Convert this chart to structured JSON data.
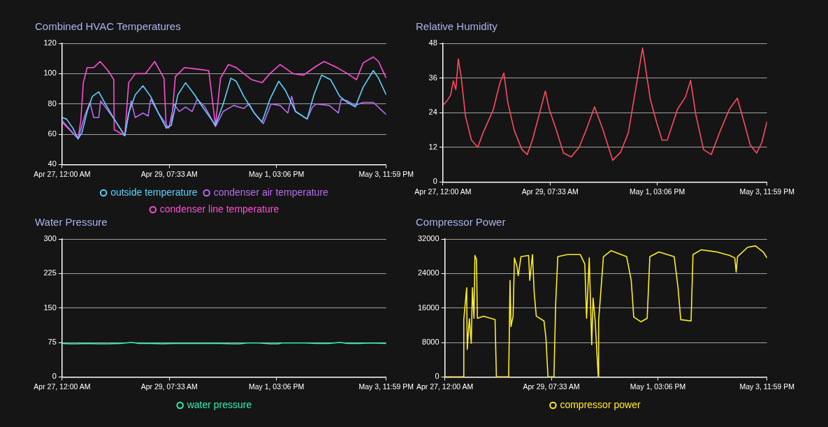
{
  "chart_data": [
    {
      "type": "line",
      "title": "Combined HVAC Temperatures",
      "xlim": [
        "--04-27T00:00",
        "--05-03T23:59"
      ],
      "xticks": [
        {
          "value": "--04-27T00:00",
          "label": "Apr 27, 12:00 AM"
        },
        {
          "value": "--04-29T07:33",
          "label": "Apr 29, 07:33 AM"
        },
        {
          "value": "--05-01T15:06",
          "label": "May 1, 03:06 PM"
        },
        {
          "value": "--05-03T23:59",
          "label": "May 3, 11:59 PM"
        }
      ],
      "ylim": [
        40,
        120
      ],
      "yticks": [
        40,
        60,
        80,
        100,
        120
      ],
      "grid": "y",
      "legend": "bottom",
      "marker": "none",
      "series": [
        {
          "name": "outside temperature",
          "color": "#5cd2ff",
          "x": [
            "--04-27T00:00",
            "--04-27T02:18",
            "--04-27T05:36",
            "--04-27T08:18",
            "--04-27T10:18",
            "--04-27T13:00",
            "--04-27T15:42",
            "--04-27T19:00",
            "--04-27T22:24",
            "--04-28T03:00",
            "--04-28T08:30",
            "--04-28T10:30",
            "--04-28T13:54",
            "--04-28T17:54",
            "--04-28T21:54",
            "--04-29T01:54",
            "--04-29T06:00",
            "--04-29T08:36",
            "--04-29T12:00",
            "--04-29T16:00",
            "--04-29T20:42",
            "--04-30T00:48",
            "--04-30T07:30",
            "--04-30T11:30",
            "--04-30T15:30",
            "--04-30T18:12",
            "--04-30T22:12",
            "--05-01T03:36",
            "--05-01T07:36",
            "--05-01T11:42",
            "--05-01T16:18",
            "--05-01T19:42",
            "--05-02T01:00",
            "--05-02T07:00",
            "--05-02T10:30",
            "--05-02T14:30",
            "--05-02T19:12",
            "--05-02T23:54",
            "--05-03T03:54",
            "--05-03T08:00",
            "--05-03T12:00",
            "--05-03T17:18",
            "--05-03T20:00",
            "--05-03T23:59"
          ],
          "values": [
            71,
            70,
            64,
            57,
            61,
            75,
            85,
            88,
            80,
            70,
            59,
            74,
            86,
            92,
            85,
            74,
            64,
            66,
            86,
            94,
            86,
            78,
            66,
            80,
            97,
            95,
            85,
            74,
            68,
            83,
            95,
            89,
            75,
            70,
            86,
            99,
            96,
            85,
            81,
            78,
            91,
            102,
            97,
            86
          ]
        },
        {
          "name": "condenser air temperature",
          "color": "#b86cf2",
          "x": [
            "--04-27T00:00",
            "--04-27T08:18",
            "--04-27T11:42",
            "--04-27T14:24",
            "--04-27T16:24",
            "--04-27T19:00",
            "--04-27T20:00",
            "--04-27T23:00",
            "--04-28T03:00",
            "--04-28T08:30",
            "--04-28T11:48",
            "--04-28T13:54",
            "--04-28T17:54",
            "--04-28T20:36",
            "--04-28T21:54",
            "--04-29T01:54",
            "--04-29T07:18",
            "--04-29T10:00",
            "--04-29T12:42",
            "--04-29T16:00",
            "--04-29T19:24",
            "--04-29T22:00",
            "--04-30T02:06",
            "--04-30T07:30",
            "--04-30T11:30",
            "--04-30T16:54",
            "--04-30T22:12",
            "--05-01T00:54",
            "--05-01T03:36",
            "--05-01T08:18",
            "--05-01T12:18",
            "--05-01T17:00",
            "--05-01T21:00",
            "--05-01T23:00",
            "--05-02T01:00",
            "--05-02T07:00",
            "--05-02T09:48",
            "--05-02T11:48",
            "--05-02T18:30",
            "--05-02T23:12",
            "--05-03T00:36",
            "--05-03T03:54",
            "--05-03T08:00",
            "--05-03T12:00",
            "--05-03T17:18",
            "--05-03T23:59"
          ],
          "values": [
            69,
            57,
            72,
            81,
            71,
            71,
            82,
            77,
            70,
            59,
            82,
            71,
            74,
            72,
            83,
            74,
            64,
            80,
            75,
            78,
            75,
            83,
            78,
            65,
            75,
            79,
            77,
            80,
            74,
            67,
            80,
            79,
            74,
            85,
            75,
            70,
            78,
            80,
            79,
            74,
            83,
            82,
            79,
            81,
            81,
            73
          ]
        },
        {
          "name": "condenser line temperature",
          "color": "#ff4fd6",
          "x": [
            "--04-27T00:00",
            "--04-27T08:18",
            "--04-27T09:42",
            "--04-27T11:00",
            "--04-27T13:00",
            "--04-27T16:24",
            "--04-27T19:42",
            "--04-27T23:48",
            "--04-28T02:48",
            "--04-28T03:00",
            "--04-28T08:30",
            "--04-28T10:30",
            "--04-28T13:54",
            "--04-28T19:12",
            "--04-29T00:00",
            "--04-29T04:48",
            "--04-29T06:00",
            "--04-29T08:36",
            "--04-29T10:42",
            "--04-29T15:24",
            "--04-29T22:00",
            "--04-30T04:00",
            "--04-30T07:30",
            "--04-30T10:06",
            "--04-30T14:12",
            "--04-30T18:12",
            "--05-01T02:18",
            "--05-01T07:36",
            "--05-01T11:42",
            "--05-01T17:00",
            "--05-01T23:42",
            "--05-02T05:06",
            "--05-02T11:48",
            "--05-02T15:48",
            "--05-02T22:30",
            "--05-03T03:54",
            "--05-03T08:36",
            "--05-03T12:00",
            "--05-03T17:18",
            "--05-03T20:00",
            "--05-03T23:59"
          ],
          "values": [
            68,
            57,
            69,
            94,
            104,
            104,
            108,
            102,
            96,
            63,
            59,
            94,
            100,
            100,
            108,
            97,
            64,
            66,
            98,
            104,
            103,
            102,
            66,
            97,
            106,
            104,
            96,
            94,
            100,
            106,
            100,
            99,
            105,
            108,
            104,
            100,
            96,
            107,
            111,
            108,
            97
          ]
        }
      ]
    },
    {
      "type": "line",
      "title": "Relative Humidity",
      "xlim": [
        "--04-27T00:00",
        "--05-03T23:59"
      ],
      "xticks": [
        {
          "value": "--04-27T00:00",
          "label": "Apr 27, 12:00 AM"
        },
        {
          "value": "--04-29T07:33",
          "label": "Apr 29, 07:33 AM"
        },
        {
          "value": "--05-01T15:06",
          "label": "May 1, 03:06 PM"
        },
        {
          "value": "--05-03T23:59",
          "label": "May 3, 11:59 PM"
        }
      ],
      "ylim": [
        0,
        48
      ],
      "yticks": [
        0,
        12,
        24,
        36,
        48
      ],
      "grid": "y",
      "marker": "none",
      "series": [
        {
          "color": "#ff4b5c",
          "x": [
            "--04-27T00:00",
            "--04-27T02:00",
            "--04-27T04:00",
            "--04-27T05:24",
            "--04-27T06:42",
            "--04-27T08:00",
            "--04-27T09:24",
            "--04-27T11:42",
            "--04-27T14:48",
            "--04-27T18:06",
            "--04-27T20:48",
            "--04-28T02:06",
            "--04-28T05:36",
            "--04-28T07:36",
            "--04-28T09:36",
            "--04-28T13:00",
            "--04-28T17:00",
            "--04-28T19:42",
            "--04-28T22:24",
            "--04-29T01:42",
            "--04-29T05:06",
            "--04-29T07:06",
            "--04-29T10:30",
            "--04-29T14:30",
            "--04-29T18:30",
            "--04-29T22:36",
            "--04-30T02:36",
            "--04-30T06:36",
            "--04-30T10:42",
            "--04-30T16:00",
            "--04-30T20:06",
            "--05-01T00:06",
            "--05-01T02:48",
            "--05-01T07:30",
            "--05-01T11:30",
            "--05-01T14:54",
            "--05-01T17:36",
            "--05-01T20:18",
            "--05-02T01:36",
            "--05-02T05:42",
            "--05-02T08:24",
            "--05-02T11:00",
            "--05-02T15:06",
            "--05-02T19:06",
            "--05-02T23:48",
            "--05-03T04:30",
            "--05-03T08:36",
            "--05-03T12:36",
            "--05-03T15:18",
            "--05-03T18:36",
            "--05-03T21:18",
            "--05-03T23:59"
          ],
          "values": [
            26.5,
            28,
            30,
            35,
            32,
            42.6,
            36.8,
            22.8,
            14.5,
            12,
            17,
            25,
            34.4,
            37.7,
            27.7,
            17.8,
            11.2,
            9.5,
            14.5,
            22.8,
            31.5,
            25.2,
            18.6,
            10,
            8.7,
            12,
            18.6,
            26,
            18.6,
            7.5,
            10.3,
            17,
            27.7,
            46.4,
            28.6,
            20.3,
            14.5,
            14.5,
            25.2,
            29.4,
            35.2,
            23.6,
            11.2,
            9.5,
            17.8,
            25.2,
            29,
            19.5,
            12.8,
            10,
            13.7,
            21
          ]
        }
      ]
    },
    {
      "type": "line",
      "title": "Water Pressure",
      "xlim": [
        "--04-27T00:00",
        "--05-03T23:59"
      ],
      "xticks": [
        {
          "value": "--04-27T00:00",
          "label": "Apr 27, 12:00 AM"
        },
        {
          "value": "--04-29T07:33",
          "label": "Apr 29, 07:33 AM"
        },
        {
          "value": "--05-01T15:06",
          "label": "May 1, 03:06 PM"
        },
        {
          "value": "--05-03T23:59",
          "label": "May 3, 11:59 PM"
        }
      ],
      "ylim": [
        0,
        300
      ],
      "yticks": [
        0,
        75,
        150,
        225,
        300
      ],
      "grid": "y",
      "legend": "bottom",
      "marker": "none",
      "series": [
        {
          "name": "water pressure",
          "color": "#2ef0b4",
          "x": [
            "--04-27T00:00",
            "--04-27T04:00",
            "--04-27T08:00",
            "--04-27T12:00",
            "--04-27T18:00",
            "--04-28T00:00",
            "--04-28T06:00",
            "--04-28T12:00",
            "--04-28T16:00",
            "--04-28T22:00",
            "--04-29T04:00",
            "--04-29T10:00",
            "--04-29T16:00",
            "--04-29T22:00",
            "--04-30T04:00",
            "--04-30T10:00",
            "--04-30T16:00",
            "--04-30T20:00",
            "--05-01T00:00",
            "--05-01T06:00",
            "--05-01T12:00",
            "--05-01T16:00",
            "--05-01T18:00",
            "--05-02T00:00",
            "--05-02T06:00",
            "--05-02T12:00",
            "--05-02T18:00",
            "--05-03T00:00",
            "--05-03T04:00",
            "--05-03T10:00",
            "--05-03T16:00",
            "--05-03T23:59"
          ],
          "values": [
            73,
            72,
            72,
            73,
            72,
            72,
            73,
            75,
            73,
            73,
            72,
            73,
            73,
            73,
            73,
            73,
            72,
            72,
            74,
            74,
            72,
            72,
            74,
            74,
            74,
            73,
            73,
            75,
            73,
            73,
            74,
            73
          ]
        }
      ]
    },
    {
      "type": "line",
      "title": "Compressor Power",
      "xlim": [
        "--04-27T00:00",
        "--05-03T23:59"
      ],
      "xticks": [
        {
          "value": "--04-27T00:00",
          "label": "Apr 27, 12:00 AM"
        },
        {
          "value": "--04-29T07:33",
          "label": "Apr 29, 07:33 AM"
        },
        {
          "value": "--05-01T15:06",
          "label": "May 1, 03:06 PM"
        },
        {
          "value": "--05-03T23:59",
          "label": "May 3, 11:59 PM"
        }
      ],
      "ylim": [
        0,
        32000
      ],
      "yticks": [
        0,
        8000,
        16000,
        24000,
        32000
      ],
      "grid": "y",
      "legend": "bottom",
      "marker": "none",
      "series": [
        {
          "name": "compressor power",
          "color": "#ffee22",
          "x": [
            "--04-27T00:00",
            "--04-27T09:48",
            "--04-27T09:54",
            "--04-27T11:24",
            "--04-27T11:42",
            "--04-27T12:48",
            "--04-27T13:48",
            "--04-27T14:24",
            "--04-27T15:12",
            "--04-27T15:42",
            "--04-27T16:30",
            "--04-27T17:00",
            "--04-27T20:12",
            "--04-28T02:12",
            "--04-28T02:54",
            "--04-28T09:18",
            "--04-28T10:00",
            "--04-28T10:30",
            "--04-28T11:36",
            "--04-28T12:18",
            "--04-28T13:36",
            "--04-28T14:18",
            "--04-28T15:42",
            "--04-28T19:42",
            "--04-28T20:18",
            "--04-28T21:42",
            "--04-28T22:36",
            "--04-28T23:42",
            "--04-29T03:42",
            "--04-29T04:42",
            "--04-29T05:48",
            "--04-29T08:54",
            "--04-29T09:48",
            "--04-29T10:54",
            "--04-29T15:48",
            "--04-29T22:36",
            "--04-30T01:00",
            "--04-30T01:54",
            "--04-30T03:18",
            "--04-30T04:36",
            "--04-30T05:18",
            "--04-30T06:24",
            "--04-30T08:00",
            "--04-30T08:12",
            "--04-30T10:42",
            "--04-30T14:42",
            "--04-30T22:48",
            "--05-01T01:12",
            "--05-01T02:30",
            "--05-01T06:12",
            "--05-01T09:30",
            "--05-01T10:54",
            "--05-01T15:36",
            "--05-01T23:36",
            "--05-02T01:36",
            "--05-02T03:00",
            "--05-02T08:24",
            "--05-02T09:24",
            "--05-02T13:42",
            "--05-02T21:48",
            "--05-03T04:30",
            "--05-03T07:12",
            "--05-03T07:54",
            "--05-03T08:36",
            "--05-03T13:54",
            "--05-03T18:00",
            "--05-03T22:00",
            "--05-03T23:59"
          ],
          "values": [
            0,
            0,
            13300,
            20700,
            6400,
            13500,
            7800,
            20700,
            13600,
            28200,
            27300,
            13600,
            14100,
            13300,
            0,
            0,
            22400,
            11700,
            14100,
            27600,
            25700,
            23500,
            27900,
            28200,
            22400,
            28400,
            19600,
            14100,
            13000,
            9200,
            0,
            0,
            16900,
            27900,
            28400,
            28400,
            26200,
            13600,
            27600,
            7500,
            18300,
            13000,
            0,
            13000,
            27900,
            29300,
            27900,
            22400,
            13900,
            12800,
            13600,
            27900,
            29000,
            27900,
            20700,
            13300,
            13000,
            28400,
            29500,
            29000,
            28200,
            27600,
            24300,
            27900,
            30100,
            30400,
            29000,
            27600
          ]
        }
      ]
    }
  ]
}
